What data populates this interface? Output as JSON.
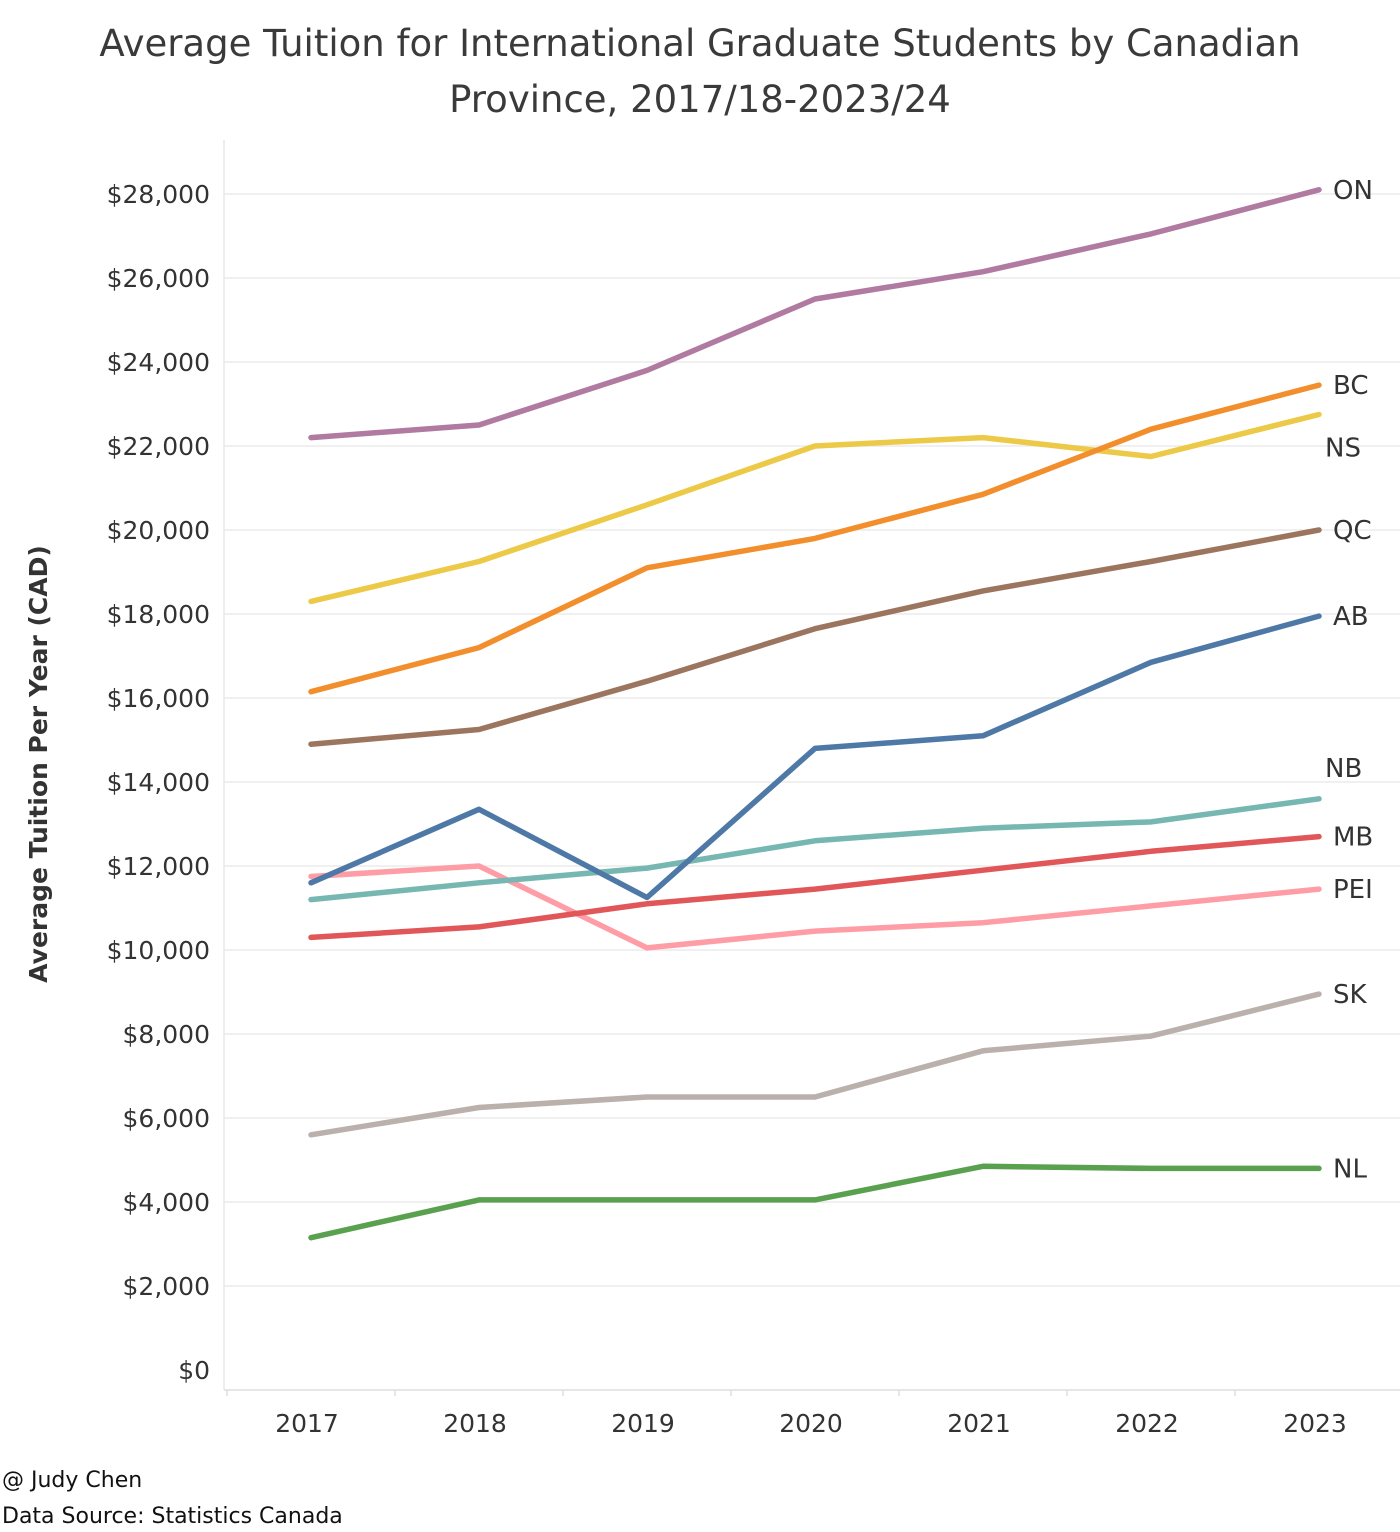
{
  "title_lines": [
    "Average Tuition for International Graduate Students by Canadian",
    "Province, 2017/18-2023/24"
  ],
  "footer": {
    "credit": "@ Judy Chen",
    "source": "Data Source: Statistics Canada"
  },
  "chart_data": {
    "type": "line",
    "title": "Average Tuition for International Graduate Students by Canadian Province, 2017/18-2023/24",
    "xlabel": "",
    "ylabel": "Average Tuition Per Year (CAD)",
    "x": [
      "2017",
      "2018",
      "2019",
      "2020",
      "2021",
      "2022",
      "2023"
    ],
    "ylim": [
      0,
      29000
    ],
    "yticks": [
      0,
      2000,
      4000,
      6000,
      8000,
      10000,
      12000,
      14000,
      16000,
      18000,
      20000,
      22000,
      24000,
      26000,
      28000
    ],
    "ytick_labels": [
      "$0",
      "$2,000",
      "$4,000",
      "$6,000",
      "$8,000",
      "$10,000",
      "$12,000",
      "$14,000",
      "$16,000",
      "$18,000",
      "$20,000",
      "$22,000",
      "$24,000",
      "$26,000",
      "$28,000"
    ],
    "grid": true,
    "legend": "direct labels at line ends (right)",
    "series": [
      {
        "name": "ON",
        "color": "#b07aa1",
        "values": [
          22200,
          22500,
          23800,
          25500,
          26150,
          27050,
          28100
        ]
      },
      {
        "name": "BC",
        "color": "#f28e2b",
        "values": [
          16150,
          17200,
          19100,
          19800,
          20850,
          22400,
          23450
        ]
      },
      {
        "name": "NS",
        "color": "#edc948",
        "values": [
          18300,
          19250,
          20600,
          22000,
          22200,
          21750,
          22750
        ]
      },
      {
        "name": "QC",
        "color": "#9c755f",
        "values": [
          14900,
          15250,
          16400,
          17650,
          18550,
          19250,
          20000
        ]
      },
      {
        "name": "AB",
        "color": "#4e79a7",
        "values": [
          11600,
          13350,
          11250,
          14800,
          15100,
          16850,
          17950
        ]
      },
      {
        "name": "NB",
        "color": "#76b7b2",
        "values": [
          11200,
          11600,
          11950,
          12600,
          12900,
          13050,
          13600
        ]
      },
      {
        "name": "MB",
        "color": "#e15759",
        "values": [
          10300,
          10550,
          11100,
          11450,
          11900,
          12350,
          12700
        ]
      },
      {
        "name": "PEI",
        "color": "#ff9da7",
        "values": [
          11750,
          12000,
          10050,
          10450,
          10650,
          11050,
          11450
        ]
      },
      {
        "name": "SK",
        "color": "#bab0ac",
        "values": [
          5600,
          6250,
          6500,
          6500,
          7600,
          7950,
          8950
        ]
      },
      {
        "name": "NL",
        "color": "#59a14f",
        "values": [
          3150,
          4050,
          4050,
          4050,
          4850,
          4800,
          4800
        ]
      }
    ]
  }
}
